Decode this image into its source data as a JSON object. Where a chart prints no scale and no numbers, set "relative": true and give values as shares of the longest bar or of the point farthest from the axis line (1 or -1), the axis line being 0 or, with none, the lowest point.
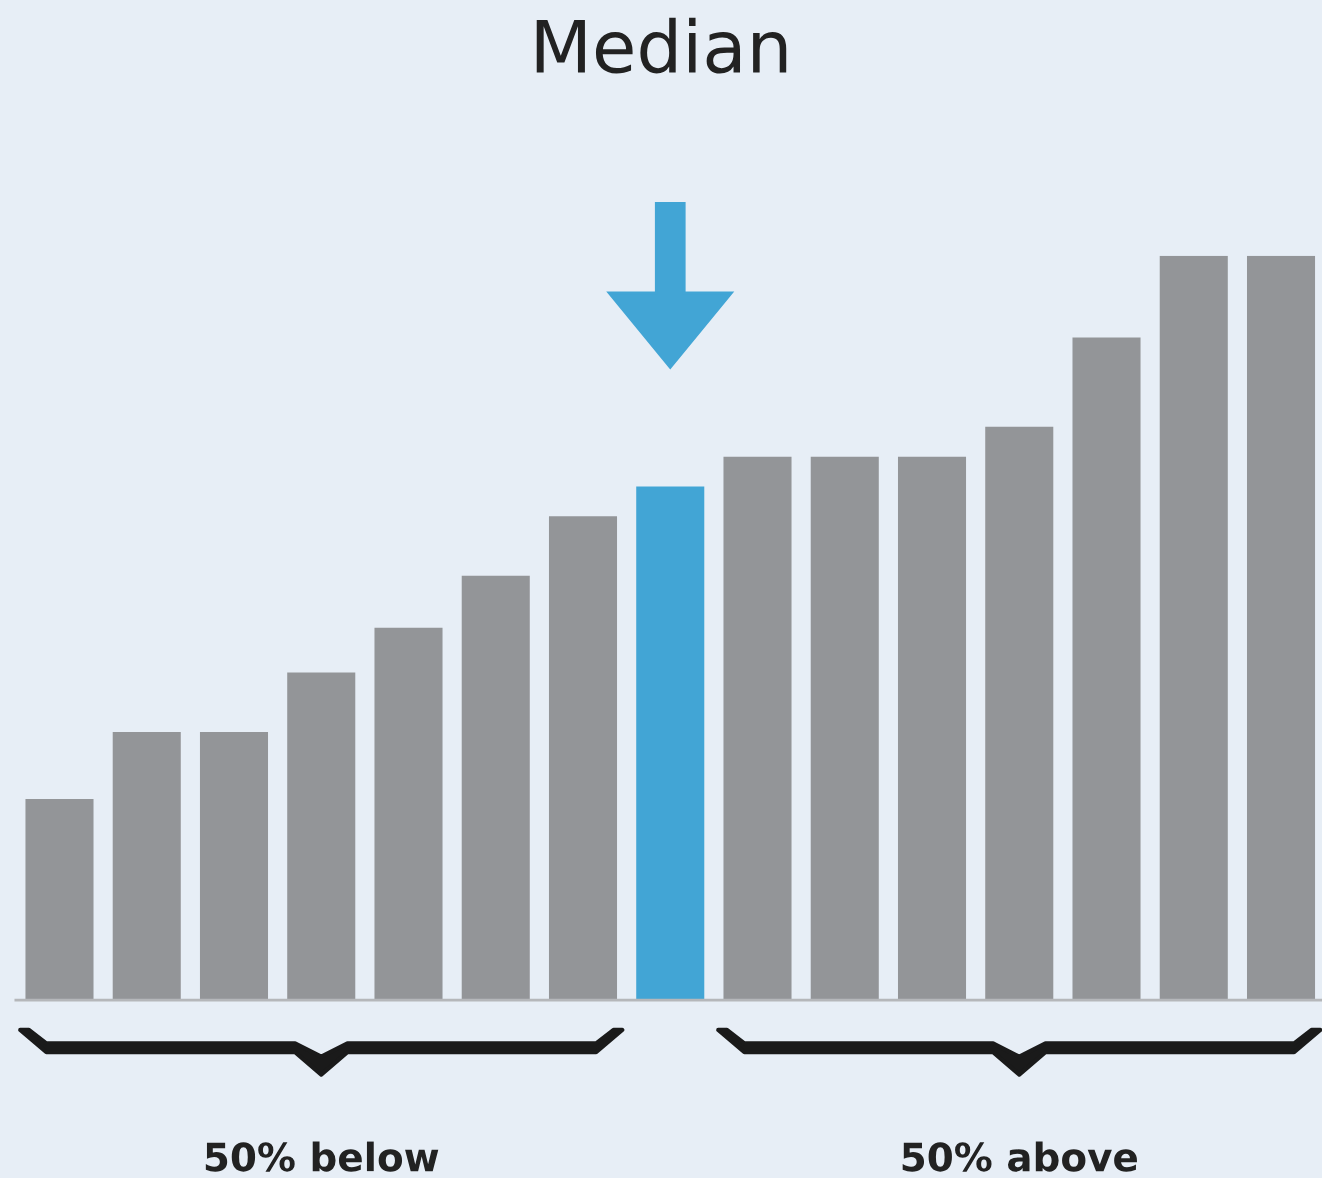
{
  "chart_data": {
    "type": "bar",
    "title": "Median",
    "relative": true,
    "categories": [
      null,
      null,
      null,
      null,
      null,
      null,
      null,
      null,
      null,
      null,
      null,
      null,
      null,
      null,
      null
    ],
    "values": [
      0.27,
      0.36,
      0.36,
      0.44,
      0.5,
      0.57,
      0.65,
      0.69,
      0.73,
      0.73,
      0.73,
      0.77,
      0.89,
      1,
      1
    ],
    "colors": [
      "#939598",
      "#939598",
      "#939598",
      "#939598",
      "#939598",
      "#939598",
      "#939598",
      "#42a5d5",
      "#939598",
      "#939598",
      "#939598",
      "#939598",
      "#939598",
      "#939598",
      "#939598"
    ],
    "annotations": [
      "50% below",
      "50% above"
    ],
    "grid": false,
    "legend": false
  }
}
